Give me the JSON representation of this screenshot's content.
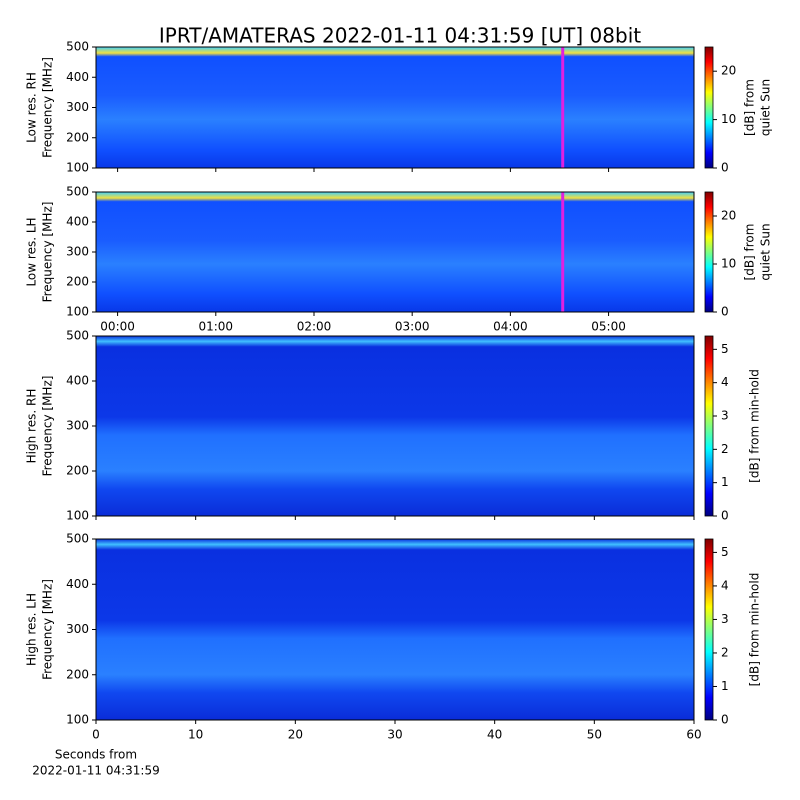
{
  "title": "IPRT/AMATERAS 2022-01-11 04:31:59 [UT]   08bit",
  "chart_data": [
    {
      "type": "heatmap",
      "ylabel": [
        "Low res. RH",
        "Frequency [MHz]"
      ],
      "ylim": [
        100,
        500
      ],
      "yticks": [
        100,
        200,
        300,
        400,
        500
      ],
      "xlim": [
        -0.22,
        5.87
      ],
      "xticks": [
        {
          "value": 0,
          "label": "00:00"
        },
        {
          "value": 1,
          "label": "01:00"
        },
        {
          "value": 2,
          "label": "02:00"
        },
        {
          "value": 3,
          "label": "03:00"
        },
        {
          "value": 4,
          "label": "04:00"
        },
        {
          "value": 5,
          "label": "05:00"
        }
      ],
      "show_xtick_labels": false,
      "marker_x": 4.533,
      "marker_color": "#e020e0",
      "colorbar_label": [
        "[dB] from",
        "quiet Sun"
      ],
      "clim": [
        0,
        25
      ],
      "cticks": [
        0,
        10,
        20
      ]
    },
    {
      "type": "heatmap",
      "ylabel": [
        "Low res. LH",
        "Frequency [MHz]"
      ],
      "ylim": [
        100,
        500
      ],
      "yticks": [
        100,
        200,
        300,
        400,
        500
      ],
      "xlim": [
        -0.22,
        5.87
      ],
      "xticks": [
        {
          "value": 0,
          "label": "00:00"
        },
        {
          "value": 1,
          "label": "01:00"
        },
        {
          "value": 2,
          "label": "02:00"
        },
        {
          "value": 3,
          "label": "03:00"
        },
        {
          "value": 4,
          "label": "04:00"
        },
        {
          "value": 5,
          "label": "05:00"
        }
      ],
      "show_xtick_labels": true,
      "marker_x": 4.533,
      "marker_color": "#e020e0",
      "colorbar_label": [
        "[dB] from",
        "quiet Sun"
      ],
      "clim": [
        0,
        25
      ],
      "cticks": [
        0,
        10,
        20
      ]
    },
    {
      "type": "heatmap",
      "ylabel": [
        "High res. RH",
        "Frequency [MHz]"
      ],
      "ylim": [
        100,
        500
      ],
      "yticks": [
        100,
        200,
        300,
        400,
        500
      ],
      "xlim": [
        0,
        60
      ],
      "xticks": [
        0,
        10,
        20,
        30,
        40,
        50,
        60
      ],
      "show_xtick_labels": false,
      "colorbar_label": [
        "[dB] from min-hold"
      ],
      "clim": [
        0,
        5.4
      ],
      "cticks": [
        0,
        1,
        2,
        3,
        4,
        5
      ]
    },
    {
      "type": "heatmap",
      "ylabel": [
        "High res. LH",
        "Frequency [MHz]"
      ],
      "ylim": [
        100,
        500
      ],
      "yticks": [
        100,
        200,
        300,
        400,
        500
      ],
      "xlim": [
        0,
        60
      ],
      "xticks": [
        0,
        10,
        20,
        30,
        40,
        50,
        60
      ],
      "show_xtick_labels": true,
      "xlabel": [
        "Seconds from",
        "2022-01-11 04:31:59"
      ],
      "colorbar_label": [
        "[dB] from min-hold"
      ],
      "clim": [
        0,
        5.4
      ],
      "cticks": [
        0,
        1,
        2,
        3,
        4,
        5
      ]
    }
  ]
}
